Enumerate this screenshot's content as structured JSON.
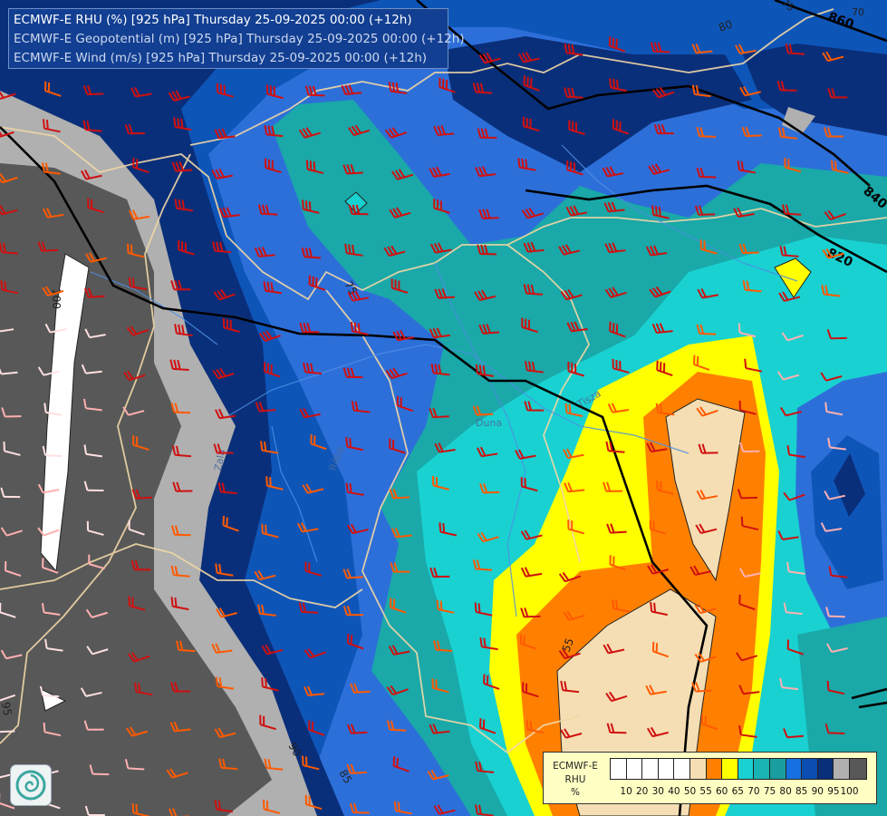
{
  "titles": {
    "line1": "ECMWF-E RHU (%) [925 hPa] Thursday 25-09-2025 00:00 (+12h)",
    "line2": "ECMWF-E Geopotential (m) [925 hPa] Thursday 25-09-2025 00:00 (+12h)",
    "line3": "ECMWF-E Wind (m/s) [925 hPa] Thursday 25-09-2025 00:00 (+12h)"
  },
  "legend": {
    "label_lines": [
      "ECMWF-E",
      "RHU",
      "%"
    ],
    "ticks": [
      "10",
      "20",
      "30",
      "40",
      "50",
      "55",
      "60",
      "65",
      "70",
      "75",
      "80",
      "85",
      "90",
      "95",
      "100"
    ],
    "colors": [
      "#ffffff",
      "#ffffff",
      "#ffffff",
      "#ffffff",
      "#ffffff",
      "#f5deb3",
      "#ff8000",
      "#ffff00",
      "#19d1d1",
      "#19b3b3",
      "#1a9ea0",
      "#1670e0",
      "#0b4db0",
      "#0a2f7a",
      "#b0b0b0",
      "#585858"
    ]
  },
  "map_labels": {
    "geopotential": [
      "860",
      "840",
      "820"
    ],
    "rhu_contours": [
      "80",
      "75",
      "100",
      "95",
      "90",
      "85",
      "55",
      "70",
      "75"
    ],
    "rivers": [
      "Zala",
      "Tisza",
      "Duna",
      "Rába"
    ]
  },
  "colors": {
    "rhu_55": "#f5deb3",
    "rhu_60": "#ff8000",
    "rhu_65": "#ffff00",
    "rhu_70": "#19d1d1",
    "rhu_75": "#1aa8a8",
    "rhu_80": "#1670e0",
    "rhu_85": "#0b4db0",
    "rhu_90": "#0a2f7a",
    "rhu_95": "#b0b0b0",
    "rhu_100": "#585858",
    "title_bg": "#123f92",
    "legend_bg": "#ffffc4"
  }
}
